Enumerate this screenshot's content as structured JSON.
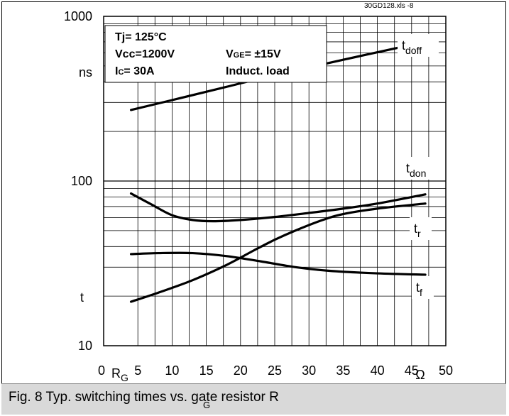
{
  "file_tag": "30GD128.xls -8",
  "conditions": {
    "tj": "Tj= 125°C",
    "vcc": "Vcc=1200V",
    "vge_pre": "V",
    "vge_sub": "GE",
    "vge_post": "= ±15V",
    "ic_pre": "I",
    "ic_sub": "C",
    "ic_post": "= 30A",
    "load": "Induct. load"
  },
  "caption": {
    "text": "Fig. 8 Typ. switching times vs. gate resistor R",
    "sub": "G"
  },
  "chart_data": {
    "type": "line",
    "log_y": true,
    "ylim": [
      10,
      1000
    ],
    "xlim": [
      0,
      50
    ],
    "grid": true,
    "y_ticks": [
      "10",
      "100",
      "1000"
    ],
    "y_unit": "ns",
    "y_symbol": "t",
    "x_ticks": [
      "5",
      "10",
      "15",
      "20",
      "25",
      "30",
      "35",
      "40",
      "45",
      "50"
    ],
    "x_zero": "0",
    "x_symbol": "R",
    "x_symbol_sub": "G",
    "x_unit": "Ω",
    "series": [
      {
        "name": "doff",
        "x": [
          4,
          10,
          17,
          25,
          35,
          47
        ],
        "y": [
          270,
          310,
          365,
          440,
          545,
          700
        ]
      },
      {
        "name": "don",
        "x": [
          4,
          7,
          10,
          13,
          16,
          20,
          25,
          30,
          35,
          40,
          47
        ],
        "y": [
          84,
          72,
          62,
          58,
          57,
          58,
          60.5,
          64,
          68,
          73,
          83
        ]
      },
      {
        "name": "r",
        "x": [
          4,
          8,
          13,
          18,
          22,
          25,
          28,
          32,
          35,
          40,
          47
        ],
        "y": [
          18.5,
          21,
          25,
          31,
          38,
          44,
          50,
          58,
          63,
          68,
          73
        ]
      },
      {
        "name": "f",
        "x": [
          4,
          8,
          13,
          18,
          23,
          28,
          33,
          40,
          47
        ],
        "y": [
          36,
          36.5,
          36.5,
          35,
          32.5,
          30,
          28.5,
          27.5,
          27
        ]
      }
    ]
  }
}
